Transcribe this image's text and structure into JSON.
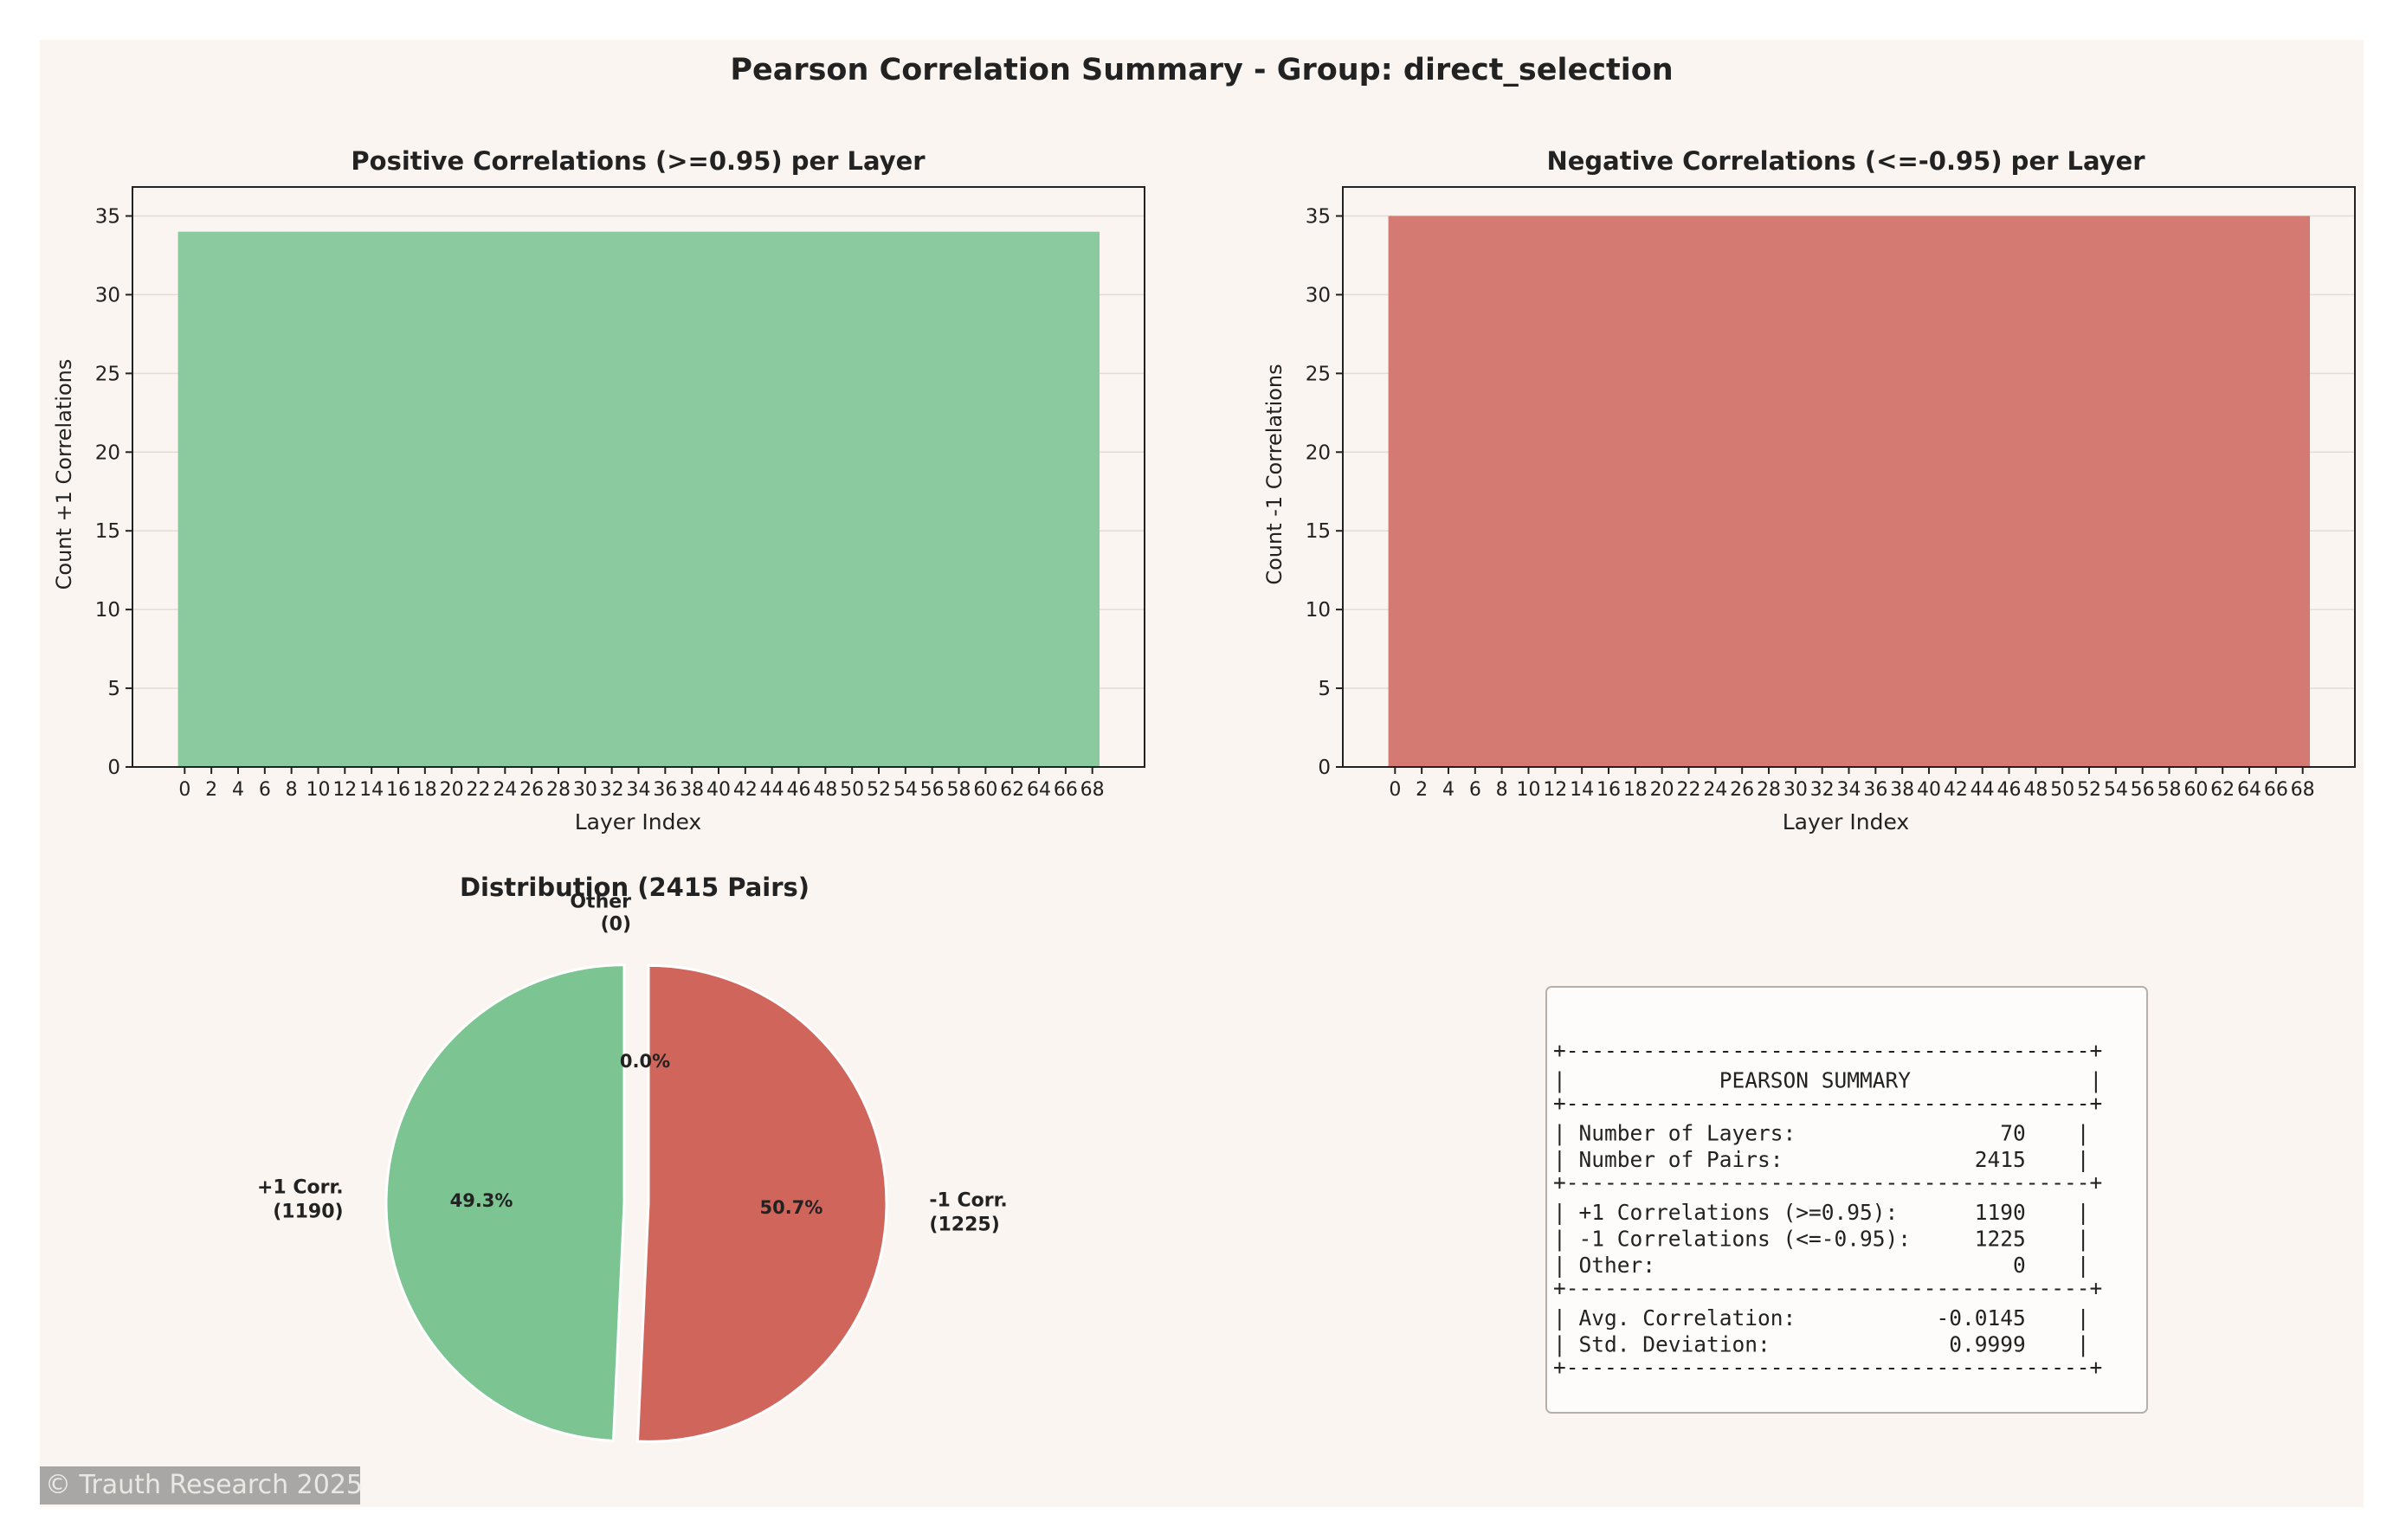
{
  "title": "Pearson Correlation Summary - Group: direct_selection",
  "colors": {
    "positive": "#8bca9f",
    "negative": "#d47a72",
    "pie_positive": "#7cc492",
    "pie_negative": "#d0655c",
    "background": "#faf5f0"
  },
  "chart_data": [
    {
      "type": "bar",
      "title": "Positive Correlations (>=0.95) per Layer",
      "xlabel": "Layer Index",
      "ylabel": "Count +1 Correlations",
      "ylim": [
        0,
        35
      ],
      "yticks": [
        0,
        5,
        10,
        15,
        20,
        25,
        30,
        35
      ],
      "x_range": [
        0,
        69
      ],
      "xtick_labels": [
        "0",
        "2",
        "4",
        "6",
        "8",
        "10",
        "12",
        "14",
        "16",
        "18",
        "20",
        "22",
        "24",
        "26",
        "28",
        "30",
        "32",
        "34",
        "36",
        "38",
        "40",
        "42",
        "44",
        "46",
        "48",
        "50",
        "52",
        "54",
        "56",
        "58",
        "60",
        "62",
        "64",
        "66",
        "68"
      ],
      "value_per_layer": 34,
      "grid": true
    },
    {
      "type": "bar",
      "title": "Negative Correlations (<=-0.95) per Layer",
      "xlabel": "Layer Index",
      "ylabel": "Count -1 Correlations",
      "ylim": [
        0,
        35
      ],
      "yticks": [
        0,
        5,
        10,
        15,
        20,
        25,
        30,
        35
      ],
      "x_range": [
        0,
        69
      ],
      "xtick_labels": [
        "0",
        "2",
        "4",
        "6",
        "8",
        "10",
        "12",
        "14",
        "16",
        "18",
        "20",
        "22",
        "24",
        "26",
        "28",
        "30",
        "32",
        "34",
        "36",
        "38",
        "40",
        "42",
        "44",
        "46",
        "48",
        "50",
        "52",
        "54",
        "56",
        "58",
        "60",
        "62",
        "64",
        "66",
        "68"
      ],
      "value_per_layer": 35,
      "grid": true
    },
    {
      "type": "pie",
      "title": "Distribution (2415 Pairs)",
      "slices": [
        {
          "label": "+1 Corr.",
          "count_label": "(1190)",
          "value": 1190,
          "pct": "49.3%"
        },
        {
          "label": "-1 Corr.",
          "count_label": "(1225)",
          "value": 1225,
          "pct": "50.7%"
        },
        {
          "label": "Other",
          "count_label": "(0)",
          "value": 0,
          "pct": "0.0%"
        }
      ]
    }
  ],
  "summary": {
    "lines": [
      "+-----------------------------------------+",
      "|            PEARSON SUMMARY              |",
      "+-----------------------------------------+",
      "| Number of Layers:                70    |",
      "| Number of Pairs:               2415    |",
      "+-----------------------------------------+",
      "| +1 Correlations (>=0.95):      1190    |",
      "| -1 Correlations (<=-0.95):     1225    |",
      "| Other:                            0    |",
      "+-----------------------------------------+",
      "| Avg. Correlation:           -0.0145    |",
      "| Std. Deviation:              0.9999    |",
      "+-----------------------------------------+"
    ]
  },
  "watermark": "© Trauth Research 2025"
}
